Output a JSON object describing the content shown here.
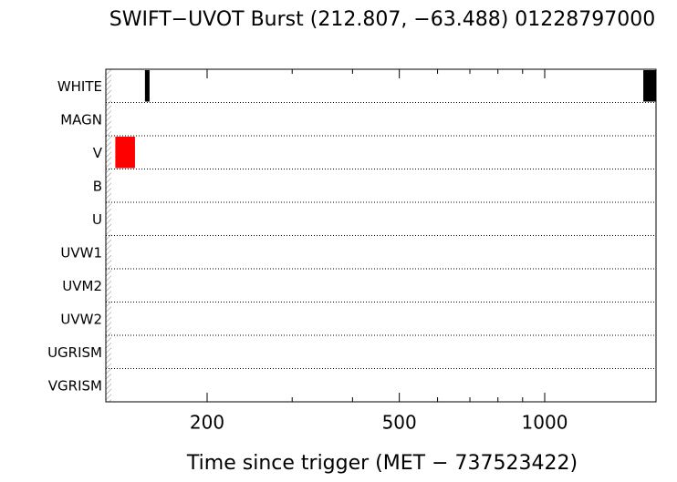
{
  "chart_data": {
    "type": "timeline",
    "title": "SWIFT−UVOT Burst (212.807, −63.488) 01228797000",
    "xlabel": "Time since trigger (MET − 737523422)",
    "categories": [
      "WHITE",
      "MAGN",
      "V",
      "B",
      "U",
      "UVW1",
      "UVM2",
      "UVW2",
      "UGRISM",
      "VGRISM"
    ],
    "bars": [
      {
        "category_index": 0,
        "start": 148.7,
        "end": 152,
        "color": "#000000"
      },
      {
        "category_index": 0,
        "start": 1600,
        "end": 1697,
        "color": "#000000"
      },
      {
        "category_index": 2,
        "start": 129.1,
        "end": 141.8,
        "color": "#ff0000"
      }
    ],
    "xlim": [
      123.4,
      1700
    ],
    "xscale": "log",
    "xticks": [
      200,
      500,
      1000
    ],
    "xminor_ticks": [
      300,
      400,
      600,
      700,
      800,
      900
    ],
    "grid": true
  }
}
